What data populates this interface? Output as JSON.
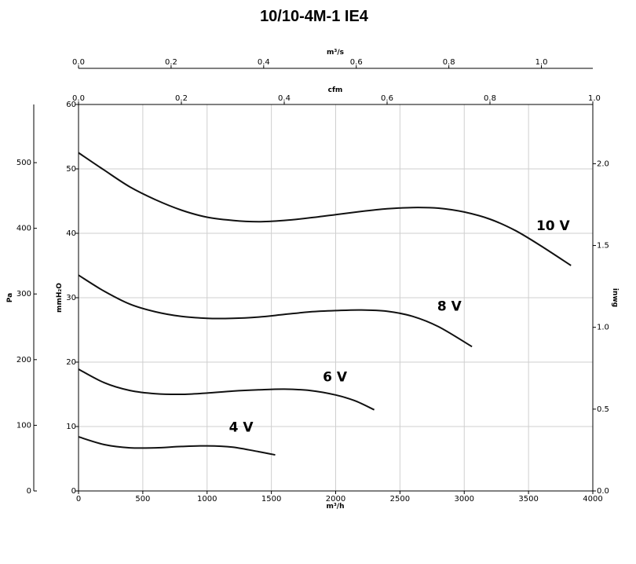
{
  "chart_data": {
    "type": "line",
    "title": "10/10-4M-1 IE4",
    "xlabel": "m³/h",
    "ylabel": "mmH₂O",
    "xlim": [
      0,
      4000
    ],
    "ylim": [
      0,
      60
    ],
    "grid": true,
    "x_ticks": [
      "0",
      "500",
      "1000",
      "1500",
      "2000",
      "2500",
      "3000",
      "3500",
      "4000"
    ],
    "y_ticks": [
      "0",
      "10",
      "20",
      "30",
      "40",
      "50",
      "60"
    ],
    "top_axes": [
      {
        "label": "m³/s",
        "lim": [
          0.0,
          1.111
        ],
        "ticks": [
          "0.0",
          "0.2",
          "0.4",
          "0.6",
          "0.8",
          "1.0"
        ],
        "tick_values": [
          0.0,
          0.2,
          0.4,
          0.6,
          0.8,
          1.0
        ]
      },
      {
        "label": "cfm",
        "lim": [
          0.0,
          1.0
        ],
        "ticks": [
          "0.0",
          "0.2",
          "0.4",
          "0.6",
          "0.8",
          "1.0"
        ],
        "tick_values": [
          0.0,
          0.2,
          0.4,
          0.6,
          0.8,
          1.0
        ]
      }
    ],
    "left_outer_axis": {
      "label": "Pa",
      "lim": [
        0,
        588.6
      ],
      "ticks": [
        "0",
        "100",
        "200",
        "300",
        "400",
        "500"
      ],
      "tick_values": [
        0,
        100,
        200,
        300,
        400,
        500
      ]
    },
    "right_axis": {
      "label": "inwg",
      "lim": [
        0,
        2.362
      ],
      "ticks": [
        "0.0",
        "0.5",
        "1.0",
        "1.5",
        "2.0"
      ],
      "tick_values": [
        0.0,
        0.5,
        1.0,
        1.5,
        2.0
      ]
    },
    "series": [
      {
        "name": "10 V",
        "label_at": [
          3560,
          40.5
        ],
        "x": [
          0,
          200,
          400,
          600,
          800,
          1000,
          1200,
          1400,
          1600,
          1800,
          2000,
          2200,
          2400,
          2600,
          2800,
          3000,
          3200,
          3400,
          3600,
          3830
        ],
        "y": [
          52.5,
          49.8,
          47.2,
          45.2,
          43.6,
          42.5,
          42.0,
          41.8,
          42.0,
          42.4,
          42.9,
          43.4,
          43.8,
          44.0,
          43.9,
          43.3,
          42.2,
          40.4,
          38.0,
          35.0
        ]
      },
      {
        "name": "8 V",
        "label_at": [
          2790,
          28.0
        ],
        "x": [
          0,
          200,
          400,
          600,
          800,
          1000,
          1200,
          1400,
          1600,
          1800,
          2000,
          2200,
          2400,
          2600,
          2800,
          3060
        ],
        "y": [
          33.5,
          31.0,
          29.0,
          27.8,
          27.1,
          26.8,
          26.8,
          27.0,
          27.4,
          27.8,
          28.0,
          28.1,
          27.9,
          27.1,
          25.5,
          22.4
        ]
      },
      {
        "name": "6 V",
        "label_at": [
          1900,
          17.0
        ],
        "x": [
          0,
          200,
          400,
          600,
          800,
          1000,
          1200,
          1400,
          1600,
          1800,
          2000,
          2150,
          2300
        ],
        "y": [
          18.9,
          16.8,
          15.6,
          15.1,
          15.0,
          15.2,
          15.5,
          15.7,
          15.8,
          15.6,
          14.9,
          14.0,
          12.6
        ]
      },
      {
        "name": "4 V",
        "label_at": [
          1170,
          9.2
        ],
        "x": [
          0,
          200,
          400,
          600,
          800,
          1000,
          1200,
          1400,
          1530
        ],
        "y": [
          8.4,
          7.2,
          6.7,
          6.7,
          6.9,
          7.0,
          6.8,
          6.1,
          5.6
        ]
      }
    ]
  }
}
